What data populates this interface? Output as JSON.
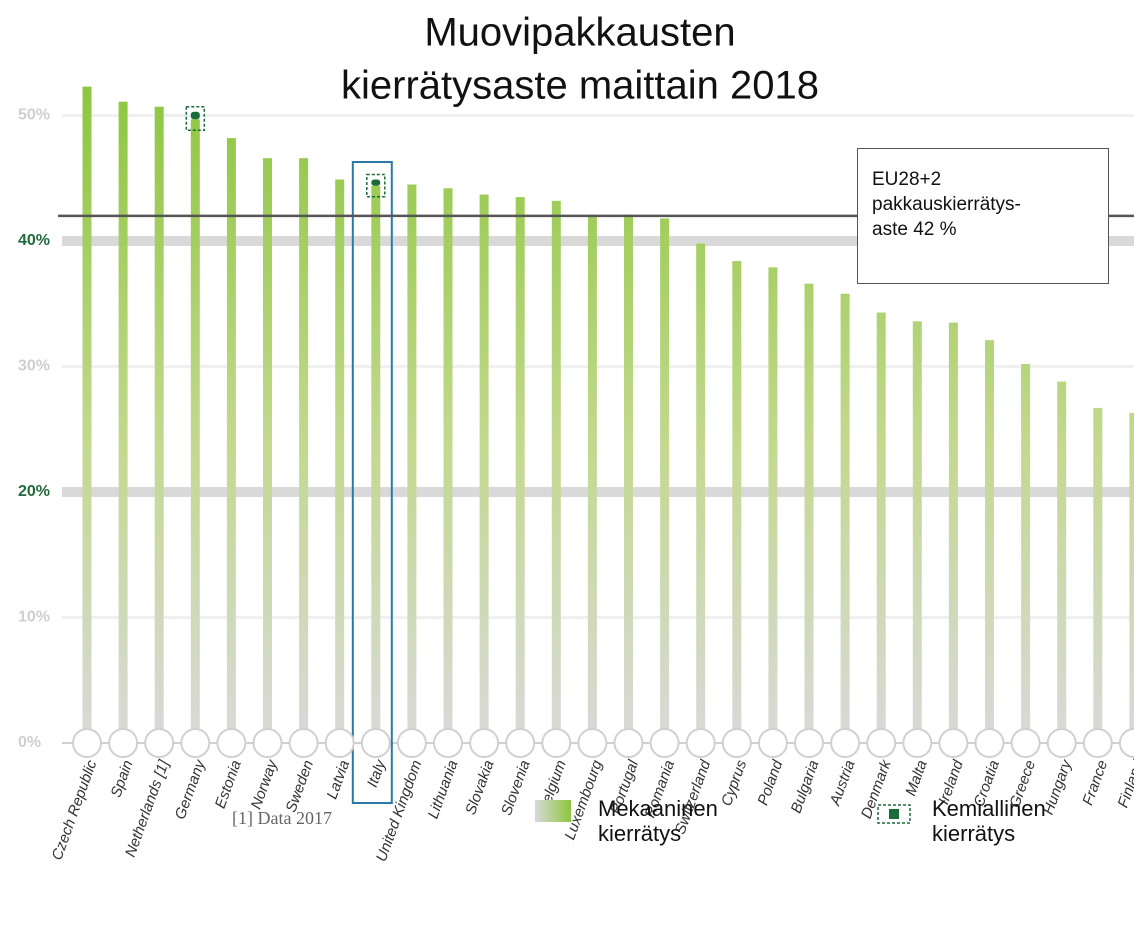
{
  "chart_data": {
    "type": "bar",
    "title": [
      "Muovipakkausten",
      "kierrätysaste maittain 2018"
    ],
    "categories": [
      "Czech Republic",
      "Spain",
      "Netherlands [1]",
      "Germany",
      "Estonia",
      "Norway",
      "Sweden",
      "Latvia",
      "Italy",
      "United Kingdom",
      "Lithuania",
      "Slovakia",
      "Slovenia",
      "Belgium",
      "Luxembourg",
      "Portugal",
      "Romania",
      "Switzerland",
      "Cyprus",
      "Poland",
      "Bulgaria",
      "Austria",
      "Denmark",
      "Malta",
      "Ireland",
      "Croatia",
      "Greece",
      "Hungary",
      "France",
      "Finland"
    ],
    "series": [
      {
        "name": "Mekaaninen kierrätys",
        "color": "#8dc63f",
        "values": [
          52.3,
          51.1,
          50.7,
          49.7,
          48.2,
          46.6,
          46.6,
          44.9,
          44.4,
          44.5,
          44.2,
          43.7,
          43.5,
          43.2,
          42.1,
          42.1,
          41.8,
          39.8,
          38.4,
          37.9,
          36.6,
          35.8,
          34.3,
          33.6,
          33.5,
          32.1,
          30.2,
          28.8,
          26.7,
          26.3
        ]
      },
      {
        "name": "Kemiallinen kierrätys",
        "color": "#1a6b3a",
        "values": [
          null,
          null,
          null,
          0.6,
          null,
          null,
          null,
          null,
          0.5,
          null,
          null,
          null,
          null,
          null,
          null,
          null,
          null,
          null,
          null,
          null,
          null,
          null,
          null,
          null,
          null,
          null,
          null,
          null,
          null,
          null
        ]
      }
    ],
    "stacked": true,
    "ylim": [
      0,
      52.3
    ],
    "yticks": [
      {
        "value": 0,
        "label": "0%"
      },
      {
        "value": 10,
        "label": "10%"
      },
      {
        "value": 20,
        "label": "20%"
      },
      {
        "value": 30,
        "label": "30%"
      },
      {
        "value": 40,
        "label": "40%"
      },
      {
        "value": 50,
        "label": "50%"
      }
    ],
    "emphasized_yticks": [
      20,
      40
    ],
    "grid": true,
    "highlight_index": 8,
    "reference_line": {
      "value": 42,
      "label": [
        "EU28+2",
        "pakkauskierrätys-",
        "aste 42 %"
      ]
    },
    "footnote": "[1] Data 2017"
  }
}
